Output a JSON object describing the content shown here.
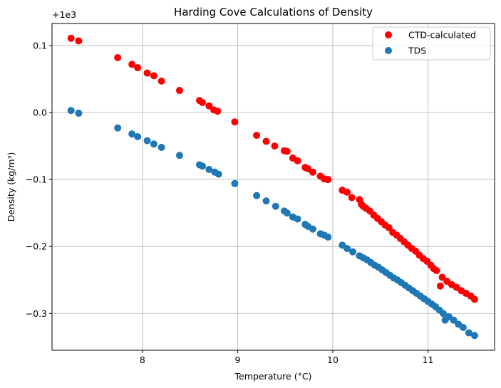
{
  "chart_data": {
    "type": "scatter",
    "title": "Harding Cove Calculations of Density",
    "xlabel": "Temperature (°C)",
    "ylabel": "Density (kg/m³)",
    "offset_label": "+1e3",
    "xlim": [
      7.05,
      11.7
    ],
    "ylim": [
      -0.355,
      0.133
    ],
    "x_ticks": [
      8,
      9,
      10,
      11
    ],
    "y_ticks": [
      0.1,
      0.0,
      -0.1,
      -0.2,
      -0.3
    ],
    "x_tick_labels": [
      "8",
      "9",
      "10",
      "11"
    ],
    "y_tick_labels": [
      "0.1",
      "0.0",
      "−0.1",
      "−0.2",
      "−0.3"
    ],
    "grid": true,
    "legend_position": "top-right",
    "series": [
      {
        "name": "CTD-calculated",
        "color": "#ff0000",
        "points": [
          [
            7.25,
            0.111
          ],
          [
            7.33,
            0.107
          ],
          [
            7.74,
            0.082
          ],
          [
            7.89,
            0.072
          ],
          [
            7.95,
            0.067
          ],
          [
            8.05,
            0.059
          ],
          [
            8.12,
            0.055
          ],
          [
            8.2,
            0.047
          ],
          [
            8.39,
            0.033
          ],
          [
            8.6,
            0.018
          ],
          [
            8.63,
            0.015
          ],
          [
            8.7,
            0.01
          ],
          [
            8.75,
            0.004
          ],
          [
            8.79,
            0.002
          ],
          [
            8.97,
            -0.014
          ],
          [
            9.2,
            -0.034
          ],
          [
            9.3,
            -0.043
          ],
          [
            9.39,
            -0.05
          ],
          [
            9.49,
            -0.057
          ],
          [
            9.52,
            -0.058
          ],
          [
            9.58,
            -0.068
          ],
          [
            9.63,
            -0.072
          ],
          [
            9.71,
            -0.082
          ],
          [
            9.74,
            -0.084
          ],
          [
            9.79,
            -0.089
          ],
          [
            9.87,
            -0.095
          ],
          [
            9.91,
            -0.099
          ],
          [
            9.95,
            -0.1
          ],
          [
            10.1,
            -0.116
          ],
          [
            10.15,
            -0.119
          ],
          [
            10.2,
            -0.127
          ],
          [
            10.28,
            -0.13
          ],
          [
            10.3,
            -0.137
          ],
          [
            10.32,
            -0.14
          ],
          [
            10.35,
            -0.143
          ],
          [
            10.39,
            -0.147
          ],
          [
            10.43,
            -0.153
          ],
          [
            10.47,
            -0.158
          ],
          [
            10.51,
            -0.163
          ],
          [
            10.55,
            -0.168
          ],
          [
            10.59,
            -0.172
          ],
          [
            10.63,
            -0.179
          ],
          [
            10.67,
            -0.183
          ],
          [
            10.71,
            -0.188
          ],
          [
            10.75,
            -0.193
          ],
          [
            10.79,
            -0.198
          ],
          [
            10.83,
            -0.203
          ],
          [
            10.87,
            -0.207
          ],
          [
            10.91,
            -0.213
          ],
          [
            10.95,
            -0.218
          ],
          [
            10.99,
            -0.222
          ],
          [
            11.03,
            -0.228
          ],
          [
            11.06,
            -0.233
          ],
          [
            11.09,
            -0.236
          ],
          [
            11.13,
            -0.259
          ],
          [
            11.15,
            -0.246
          ],
          [
            11.2,
            -0.252
          ],
          [
            11.25,
            -0.257
          ],
          [
            11.3,
            -0.261
          ],
          [
            11.35,
            -0.266
          ],
          [
            11.4,
            -0.27
          ],
          [
            11.45,
            -0.274
          ],
          [
            11.49,
            -0.279
          ]
        ]
      },
      {
        "name": "TDS",
        "color": "#1f77b4",
        "points": [
          [
            7.25,
            0.003
          ],
          [
            7.33,
            -0.001
          ],
          [
            7.74,
            -0.023
          ],
          [
            7.89,
            -0.032
          ],
          [
            7.95,
            -0.036
          ],
          [
            8.05,
            -0.042
          ],
          [
            8.12,
            -0.047
          ],
          [
            8.2,
            -0.052
          ],
          [
            8.39,
            -0.064
          ],
          [
            8.6,
            -0.078
          ],
          [
            8.63,
            -0.08
          ],
          [
            8.7,
            -0.085
          ],
          [
            8.76,
            -0.089
          ],
          [
            8.8,
            -0.092
          ],
          [
            8.97,
            -0.106
          ],
          [
            9.2,
            -0.124
          ],
          [
            9.3,
            -0.132
          ],
          [
            9.4,
            -0.14
          ],
          [
            9.49,
            -0.147
          ],
          [
            9.52,
            -0.15
          ],
          [
            9.58,
            -0.156
          ],
          [
            9.63,
            -0.159
          ],
          [
            9.71,
            -0.167
          ],
          [
            9.74,
            -0.17
          ],
          [
            9.79,
            -0.174
          ],
          [
            9.87,
            -0.181
          ],
          [
            9.91,
            -0.183
          ],
          [
            9.95,
            -0.186
          ],
          [
            10.1,
            -0.198
          ],
          [
            10.15,
            -0.203
          ],
          [
            10.21,
            -0.208
          ],
          [
            10.28,
            -0.214
          ],
          [
            10.32,
            -0.217
          ],
          [
            10.36,
            -0.22
          ],
          [
            10.4,
            -0.224
          ],
          [
            10.44,
            -0.228
          ],
          [
            10.48,
            -0.231
          ],
          [
            10.52,
            -0.235
          ],
          [
            10.56,
            -0.239
          ],
          [
            10.6,
            -0.243
          ],
          [
            10.64,
            -0.247
          ],
          [
            10.68,
            -0.25
          ],
          [
            10.72,
            -0.254
          ],
          [
            10.76,
            -0.258
          ],
          [
            10.8,
            -0.262
          ],
          [
            10.84,
            -0.266
          ],
          [
            10.88,
            -0.27
          ],
          [
            10.92,
            -0.274
          ],
          [
            10.96,
            -0.278
          ],
          [
            11.0,
            -0.282
          ],
          [
            11.04,
            -0.286
          ],
          [
            11.08,
            -0.29
          ],
          [
            11.12,
            -0.295
          ],
          [
            11.16,
            -0.3
          ],
          [
            11.18,
            -0.31
          ],
          [
            11.22,
            -0.305
          ],
          [
            11.27,
            -0.31
          ],
          [
            11.32,
            -0.316
          ],
          [
            11.37,
            -0.321
          ],
          [
            11.43,
            -0.329
          ],
          [
            11.49,
            -0.333
          ]
        ]
      }
    ]
  }
}
